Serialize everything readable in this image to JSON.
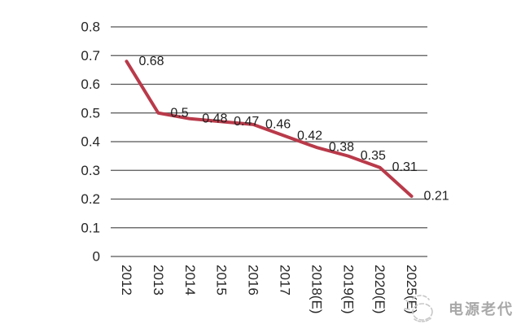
{
  "chart_data": {
    "type": "line",
    "title": "",
    "categories": [
      "2012",
      "2013",
      "2014",
      "2015",
      "2016",
      "2017",
      "2018(E)",
      "2019(E)",
      "2020(E)",
      "2025(E)"
    ],
    "values": [
      0.68,
      0.5,
      0.48,
      0.47,
      0.46,
      0.42,
      0.38,
      0.35,
      0.31,
      0.21
    ],
    "point_labels": [
      "0.68",
      "0.5",
      "0.48",
      "0.47",
      "0.46",
      "0.42",
      "0.38",
      "0.35",
      "0.31",
      "0.21"
    ],
    "y_tick_labels": [
      "0.8",
      "0.7",
      "0.6",
      "0.5",
      "0.4",
      "0.3",
      "0.2",
      "0.1",
      "0"
    ],
    "ylim": [
      0,
      0.8
    ],
    "grid": true,
    "legend": "none",
    "x_label_rotation_deg": 90,
    "colors": {
      "line": "#b93a4a",
      "gridline": "#555555",
      "axis_text": "#262626",
      "data_label_text": "#1f1f1f",
      "background": "#ffffff"
    }
  },
  "watermark": {
    "text": "电源老代",
    "icon": "doodle-sketch-icon",
    "color": "#a8a8a8"
  }
}
